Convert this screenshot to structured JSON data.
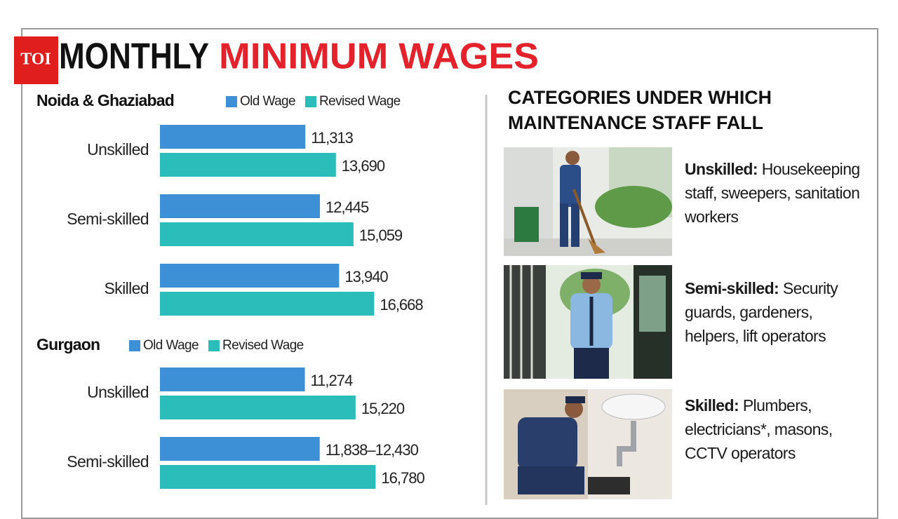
{
  "header": {
    "badge": "TOI",
    "title_black": "MONTHLY",
    "title_red": "MINIMUM WAGES"
  },
  "chart_data": [
    {
      "type": "bar",
      "orientation": "horizontal",
      "title": "Noida & Ghaziabad",
      "categories": [
        "Unskilled",
        "Semi-skilled",
        "Skilled"
      ],
      "series": [
        {
          "name": "Old Wage",
          "color": "#3d8fd6",
          "values": [
            11313,
            12445,
            13940
          ],
          "value_labels": [
            "11,313",
            "12,445",
            "13,940"
          ]
        },
        {
          "name": "Revised Wage",
          "color": "#2bbdb9",
          "values": [
            13690,
            15059,
            16668
          ],
          "value_labels": [
            "13,690",
            "15,059",
            "16,668"
          ]
        }
      ]
    },
    {
      "type": "bar",
      "orientation": "horizontal",
      "title": "Gurgaon",
      "categories": [
        "Unskilled",
        "Semi-skilled"
      ],
      "series": [
        {
          "name": "Old Wage",
          "color": "#3d8fd6",
          "values": [
            11274,
            12430
          ],
          "value_labels": [
            "11,274",
            "11,838–12,430"
          ]
        },
        {
          "name": "Revised Wage",
          "color": "#2bbdb9",
          "values": [
            15220,
            16780
          ],
          "value_labels": [
            "15,220",
            "16,780"
          ]
        }
      ]
    }
  ],
  "categories_panel": {
    "title_lines": [
      "CATEGORIES UNDER WHICH",
      "MAINTENANCE STAFF FALL"
    ],
    "items": [
      {
        "label": "Unskilled:",
        "description": "Housekeeping staff, sweepers, sanitation workers"
      },
      {
        "label": "Semi-skilled:",
        "description": "Security guards, gardeners, helpers, lift operators"
      },
      {
        "label": "Skilled:",
        "description": "Plumbers, electricians*, masons, CCTV operators"
      }
    ]
  }
}
